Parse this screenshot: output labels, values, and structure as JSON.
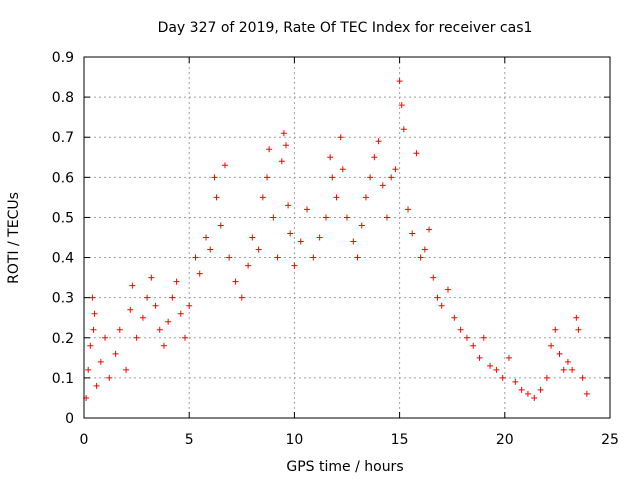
{
  "chart_data": {
    "type": "scatter",
    "title": "Day 327 of 2019, Rate Of TEC Index for receiver cas1",
    "xlabel": "GPS time / hours",
    "ylabel": "ROTI / TECUs",
    "xlim": [
      0,
      25
    ],
    "ylim": [
      0,
      0.9
    ],
    "xticks": [
      0,
      5,
      10,
      15,
      20,
      25
    ],
    "xtick_labels": [
      "0",
      "5",
      "10",
      "15",
      "20",
      "25"
    ],
    "yticks": [
      0,
      0.1,
      0.2,
      0.3,
      0.4,
      0.5,
      0.6,
      0.7,
      0.8,
      0.9
    ],
    "ytick_labels": [
      "0",
      "0.1",
      "0.2",
      "0.3",
      "0.4",
      "0.5",
      "0.6",
      "0.7",
      "0.8",
      "0.9"
    ],
    "grid": true,
    "marker": "plus",
    "color": "#ff0000",
    "series": [
      {
        "name": "ROTI",
        "points": [
          [
            0.1,
            0.05
          ],
          [
            0.2,
            0.12
          ],
          [
            0.3,
            0.18
          ],
          [
            0.4,
            0.3
          ],
          [
            0.45,
            0.22
          ],
          [
            0.5,
            0.26
          ],
          [
            0.6,
            0.08
          ],
          [
            0.8,
            0.14
          ],
          [
            1.0,
            0.2
          ],
          [
            1.2,
            0.1
          ],
          [
            1.5,
            0.16
          ],
          [
            1.7,
            0.22
          ],
          [
            2.0,
            0.12
          ],
          [
            2.2,
            0.27
          ],
          [
            2.3,
            0.33
          ],
          [
            2.5,
            0.2
          ],
          [
            2.8,
            0.25
          ],
          [
            3.0,
            0.3
          ],
          [
            3.2,
            0.35
          ],
          [
            3.4,
            0.28
          ],
          [
            3.6,
            0.22
          ],
          [
            3.8,
            0.18
          ],
          [
            4.0,
            0.24
          ],
          [
            4.2,
            0.3
          ],
          [
            4.4,
            0.34
          ],
          [
            4.6,
            0.26
          ],
          [
            4.8,
            0.2
          ],
          [
            5.0,
            0.28
          ],
          [
            5.3,
            0.4
          ],
          [
            5.5,
            0.36
          ],
          [
            5.8,
            0.45
          ],
          [
            6.0,
            0.42
          ],
          [
            6.2,
            0.6
          ],
          [
            6.3,
            0.55
          ],
          [
            6.5,
            0.48
          ],
          [
            6.7,
            0.63
          ],
          [
            6.9,
            0.4
          ],
          [
            7.2,
            0.34
          ],
          [
            7.5,
            0.3
          ],
          [
            7.8,
            0.38
          ],
          [
            8.0,
            0.45
          ],
          [
            8.3,
            0.42
          ],
          [
            8.5,
            0.55
          ],
          [
            8.7,
            0.6
          ],
          [
            8.8,
            0.67
          ],
          [
            9.0,
            0.5
          ],
          [
            9.2,
            0.4
          ],
          [
            9.4,
            0.64
          ],
          [
            9.5,
            0.71
          ],
          [
            9.6,
            0.68
          ],
          [
            9.7,
            0.53
          ],
          [
            9.8,
            0.46
          ],
          [
            10.0,
            0.38
          ],
          [
            10.3,
            0.44
          ],
          [
            10.6,
            0.52
          ],
          [
            10.9,
            0.4
          ],
          [
            11.2,
            0.45
          ],
          [
            11.5,
            0.5
          ],
          [
            11.7,
            0.65
          ],
          [
            11.8,
            0.6
          ],
          [
            12.0,
            0.55
          ],
          [
            12.2,
            0.7
          ],
          [
            12.3,
            0.62
          ],
          [
            12.5,
            0.5
          ],
          [
            12.8,
            0.44
          ],
          [
            13.0,
            0.4
          ],
          [
            13.2,
            0.48
          ],
          [
            13.4,
            0.55
          ],
          [
            13.6,
            0.6
          ],
          [
            13.8,
            0.65
          ],
          [
            14.0,
            0.69
          ],
          [
            14.2,
            0.58
          ],
          [
            14.4,
            0.5
          ],
          [
            14.6,
            0.6
          ],
          [
            14.8,
            0.62
          ],
          [
            15.0,
            0.84
          ],
          [
            15.1,
            0.78
          ],
          [
            15.2,
            0.72
          ],
          [
            15.4,
            0.52
          ],
          [
            15.6,
            0.46
          ],
          [
            15.8,
            0.66
          ],
          [
            16.0,
            0.4
          ],
          [
            16.2,
            0.42
          ],
          [
            16.4,
            0.47
          ],
          [
            16.6,
            0.35
          ],
          [
            16.8,
            0.3
          ],
          [
            17.0,
            0.28
          ],
          [
            17.3,
            0.32
          ],
          [
            17.6,
            0.25
          ],
          [
            17.9,
            0.22
          ],
          [
            18.2,
            0.2
          ],
          [
            18.5,
            0.18
          ],
          [
            18.8,
            0.15
          ],
          [
            19.0,
            0.2
          ],
          [
            19.3,
            0.13
          ],
          [
            19.6,
            0.12
          ],
          [
            19.9,
            0.1
          ],
          [
            20.2,
            0.15
          ],
          [
            20.5,
            0.09
          ],
          [
            20.8,
            0.07
          ],
          [
            21.1,
            0.06
          ],
          [
            21.4,
            0.05
          ],
          [
            21.7,
            0.07
          ],
          [
            22.0,
            0.1
          ],
          [
            22.2,
            0.18
          ],
          [
            22.4,
            0.22
          ],
          [
            22.6,
            0.16
          ],
          [
            22.8,
            0.12
          ],
          [
            23.0,
            0.14
          ],
          [
            23.2,
            0.12
          ],
          [
            23.4,
            0.25
          ],
          [
            23.5,
            0.22
          ],
          [
            23.7,
            0.1
          ],
          [
            23.9,
            0.06
          ]
        ]
      }
    ]
  }
}
